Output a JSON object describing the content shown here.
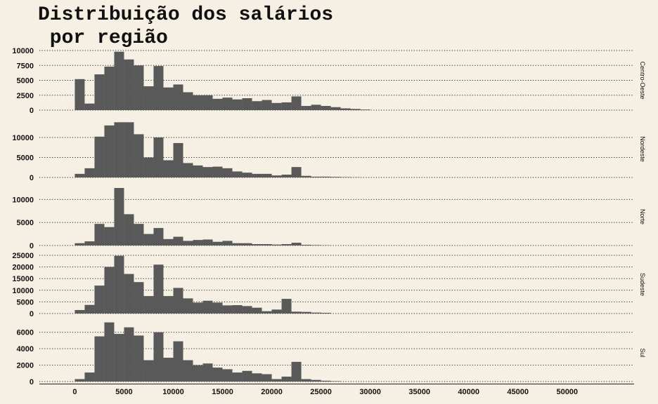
{
  "chart_data": {
    "type": "bar",
    "title_lines": [
      "Distribuição dos salários",
      " por região"
    ],
    "xlabel": "",
    "ylabel": "",
    "x_ticks": [
      "0",
      "5000",
      "10000",
      "15000",
      "20000",
      "25000",
      "30000",
      "35000",
      "40000",
      "45000",
      "50000"
    ],
    "xlim": [
      -3600,
      56800
    ],
    "bin_width": 1000,
    "bin_starts": [
      0,
      1000,
      2000,
      3000,
      4000,
      5000,
      6000,
      7000,
      8000,
      9000,
      10000,
      11000,
      12000,
      13000,
      14000,
      15000,
      16000,
      17000,
      18000,
      19000,
      20000,
      21000,
      22000,
      23000,
      24000,
      25000,
      26000,
      27000,
      28000,
      29000
    ],
    "grid": "horizontal dotted",
    "bar_color": "#595959",
    "background_color": "#f6f0e4",
    "facets": [
      {
        "name": "Centro-Oeste",
        "ylim": [
          0,
          10000
        ],
        "y_ticks": [
          "0",
          "2500",
          "5000",
          "7500",
          "10000"
        ],
        "values": [
          5200,
          1100,
          6000,
          7300,
          9800,
          8500,
          7500,
          4000,
          7400,
          3800,
          4300,
          3000,
          2500,
          2500,
          1900,
          2100,
          1800,
          2000,
          1500,
          1700,
          1200,
          1300,
          2300,
          700,
          900,
          700,
          500,
          300,
          200,
          100
        ]
      },
      {
        "name": "Nordeste",
        "ylim": [
          0,
          14200
        ],
        "y_ticks": [
          "0",
          "5000",
          "10000"
        ],
        "values": [
          900,
          2300,
          10200,
          13000,
          13800,
          13800,
          10800,
          5000,
          10000,
          4300,
          8600,
          3600,
          3000,
          2600,
          2700,
          2300,
          1500,
          1200,
          900,
          900,
          500,
          700,
          2600,
          400,
          200,
          200,
          150,
          100,
          50,
          0
        ]
      },
      {
        "name": "Norte",
        "ylim": [
          0,
          12500
        ],
        "y_ticks": [
          "0",
          "5000",
          "10000"
        ],
        "values": [
          500,
          900,
          4700,
          4000,
          12500,
          6800,
          4700,
          2500,
          3800,
          1400,
          1900,
          1000,
          1200,
          1300,
          800,
          1000,
          500,
          500,
          300,
          300,
          200,
          300,
          600,
          150,
          100,
          50,
          0,
          0,
          0,
          0
        ]
      },
      {
        "name": "Sudeste",
        "ylim": [
          0,
          25000
        ],
        "y_ticks": [
          "0",
          "5000",
          "10000",
          "15000",
          "20000",
          "25000"
        ],
        "values": [
          1500,
          3700,
          12000,
          20000,
          24800,
          17000,
          13500,
          7500,
          21000,
          7500,
          11000,
          6500,
          4700,
          5500,
          4700,
          3500,
          3600,
          3200,
          2500,
          1000,
          1700,
          6300,
          800,
          700,
          400,
          300,
          0,
          0,
          0,
          0
        ]
      },
      {
        "name": "Sul",
        "ylim": [
          0,
          7000
        ],
        "y_ticks": [
          "0",
          "2000",
          "4000",
          "6000"
        ],
        "values": [
          300,
          1100,
          5500,
          7200,
          5800,
          6600,
          5600,
          2600,
          6000,
          2900,
          4900,
          2600,
          2000,
          2200,
          1700,
          1500,
          1100,
          1300,
          1000,
          900,
          300,
          600,
          2400,
          300,
          200,
          100,
          50,
          0,
          0,
          0
        ]
      }
    ]
  }
}
